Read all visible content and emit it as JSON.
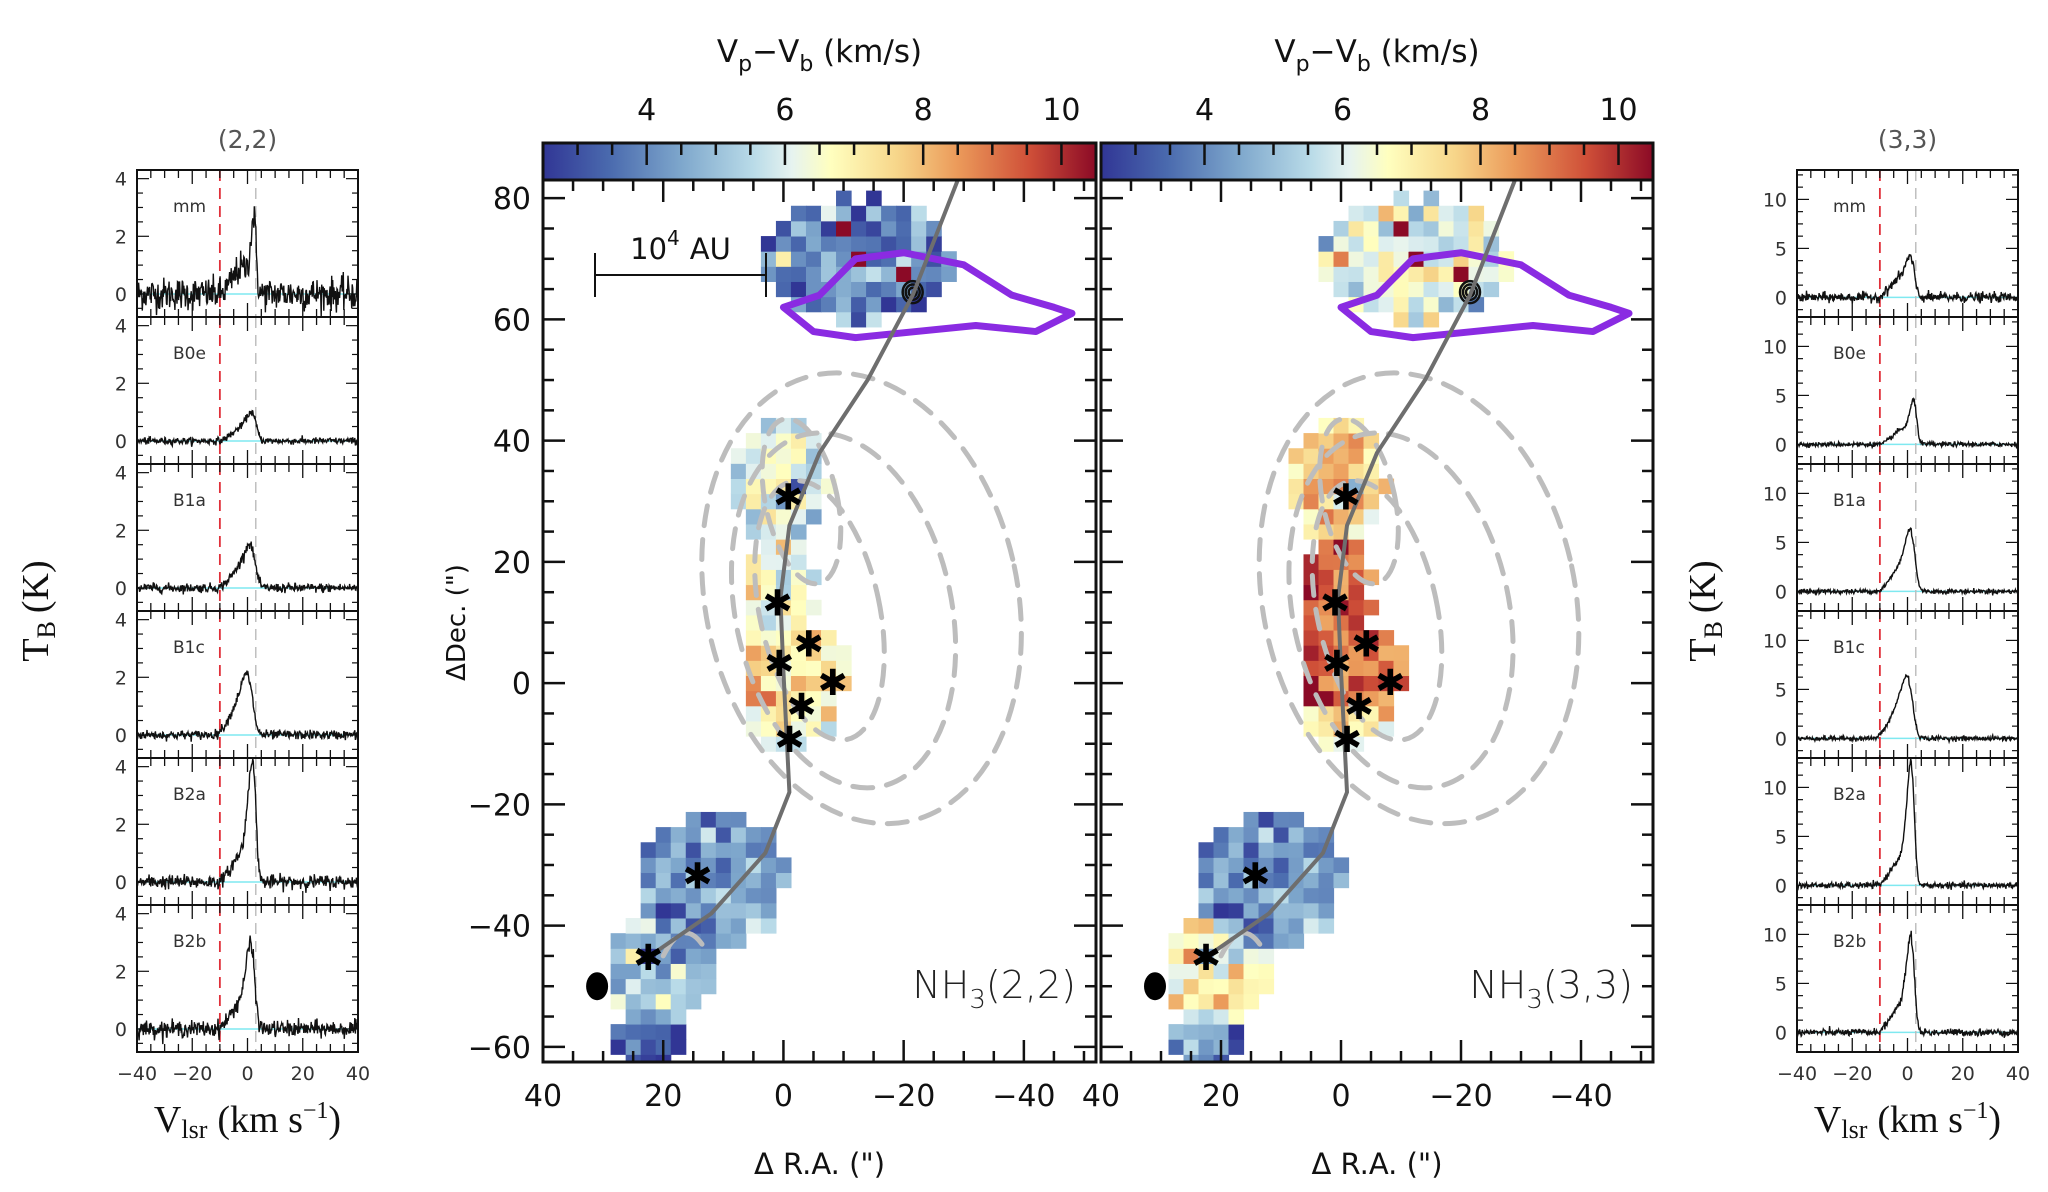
{
  "chart_data": [
    {
      "type": "line",
      "title": "(2,2)",
      "xlabel": "V_lsr (km s^-1)",
      "xlabel_parts": {
        "main": "V",
        "sub": "lsr",
        "unit": "(km s",
        "sup": "−1",
        "close": ")"
      },
      "ylabel": "T_B (K)",
      "ylabel_parts": {
        "main": "T",
        "sub": "B",
        "unit": "(K)"
      },
      "xlim": [
        -40,
        40
      ],
      "xticks": [
        -40,
        -20,
        0,
        20,
        40
      ],
      "xtick_labels": [
        "−40",
        "−20",
        "0",
        "20",
        "40"
      ],
      "ylim": [
        -0.8,
        4.3
      ],
      "yticks": [
        0,
        2,
        4
      ],
      "ytick_labels": [
        "0",
        "2",
        "4"
      ],
      "reference_lines": {
        "red_dashed_v": -10,
        "gray_dashed_v": 3
      },
      "series": [
        {
          "name": "mm",
          "peak_v": 2.5,
          "peak_t": 2.4,
          "wing_t": 0.9,
          "width": 1.2,
          "noise": 0.28
        },
        {
          "name": "B0e",
          "peak_v": 2.0,
          "peak_t": 0.85,
          "wing_t": 0.4,
          "width": 2.2,
          "noise": 0.06
        },
        {
          "name": "B1a",
          "peak_v": 1.5,
          "peak_t": 1.3,
          "wing_t": 0.6,
          "width": 2.4,
          "noise": 0.08
        },
        {
          "name": "B1c",
          "peak_v": 0.5,
          "peak_t": 1.8,
          "wing_t": 0.8,
          "width": 2.6,
          "noise": 0.08
        },
        {
          "name": "B2a",
          "peak_v": 2.0,
          "peak_t": 4.0,
          "wing_t": 0.9,
          "width": 1.8,
          "noise": 0.12
        },
        {
          "name": "B2b",
          "peak_v": 1.5,
          "peak_t": 2.7,
          "wing_t": 0.8,
          "width": 2.0,
          "noise": 0.14
        }
      ]
    },
    {
      "type": "heatmap",
      "title": "NH3(2,2)",
      "label": {
        "main": "NH",
        "sub": "3",
        "rest": "(2,2)"
      },
      "colorbar": {
        "label": "V_p−V_b (km/s)",
        "label_parts": {
          "v1": "V",
          "s1": "p",
          "dash": "−",
          "v2": "V",
          "s2": "b",
          "unit": " (km/s)"
        },
        "range": [
          2.5,
          10.5
        ],
        "ticks": [
          4,
          6,
          8,
          10
        ],
        "tick_labels": [
          "4",
          "6",
          "8",
          "10"
        ],
        "colormap": "RdYlBu_r"
      },
      "xlabel": "Δ R.A. (\")",
      "ylabel": "ΔDec. (\")",
      "xlim": [
        40,
        -52
      ],
      "ylim": [
        -62.5,
        83
      ],
      "xticks": [
        40,
        20,
        0,
        -20,
        -40
      ],
      "xtick_labels": [
        "40",
        "20",
        "0",
        "−20",
        "−40"
      ],
      "yticks": [
        80,
        60,
        40,
        20,
        0,
        -20,
        -40,
        -60
      ],
      "ytick_labels": [
        "80",
        "60",
        "40",
        "20",
        "0",
        "−20",
        "−40",
        "−60"
      ],
      "scale_bar": {
        "label_base": "10",
        "label_exp": "4",
        "label_unit": "AU",
        "length_arcsec": 28.5
      },
      "cores": [
        [
          -0.8,
          30.8
        ],
        [
          1.0,
          13.3
        ],
        [
          -4.2,
          6.5
        ],
        [
          0.7,
          3.3
        ],
        [
          -8.2,
          0.2
        ],
        [
          -3.0,
          -3.8
        ],
        [
          -1.0,
          -9.2
        ],
        [
          14.3,
          -31.7
        ],
        [
          22.5,
          -45.2
        ]
      ],
      "compact_source": [
        -21.5,
        64.5
      ],
      "beam": [
        31,
        -50
      ],
      "mean_velocity_level": "low"
    },
    {
      "type": "heatmap",
      "title": "NH3(3,3)",
      "label": {
        "main": "NH",
        "sub": "3",
        "rest": "(3,3)"
      },
      "colorbar": {
        "label": "V_p−V_b (km/s)",
        "label_parts": {
          "v1": "V",
          "s1": "p",
          "dash": "−",
          "v2": "V",
          "s2": "b",
          "unit": " (km/s)"
        },
        "range": [
          2.5,
          10.5
        ],
        "ticks": [
          4,
          6,
          8,
          10
        ],
        "tick_labels": [
          "4",
          "6",
          "8",
          "10"
        ],
        "colormap": "RdYlBu_r"
      },
      "xlabel": "Δ R.A. (\")",
      "xlim": [
        40,
        -52
      ],
      "ylim": [
        -62.5,
        83
      ],
      "xticks": [
        40,
        20,
        0,
        -20,
        -40
      ],
      "xtick_labels": [
        "40",
        "20",
        "0",
        "−20",
        "−40"
      ],
      "cores": [
        [
          -0.8,
          30.8
        ],
        [
          1.0,
          13.3
        ],
        [
          -4.2,
          6.5
        ],
        [
          0.7,
          3.3
        ],
        [
          -8.2,
          0.2
        ],
        [
          -3.0,
          -3.8
        ],
        [
          -1.0,
          -9.2
        ],
        [
          14.3,
          -31.7
        ],
        [
          22.5,
          -45.2
        ]
      ],
      "compact_source": [
        -21.5,
        64.5
      ],
      "beam": [
        31,
        -50
      ],
      "mean_velocity_level": "high"
    },
    {
      "type": "line",
      "title": "(3,3)",
      "xlabel": "V_lsr (km s^-1)",
      "xlabel_parts": {
        "main": "V",
        "sub": "lsr",
        "unit": "(km s",
        "sup": "−1",
        "close": ")"
      },
      "ylabel": "T_B (K)",
      "ylabel_parts": {
        "main": "T",
        "sub": "B",
        "unit": "(K)"
      },
      "xlim": [
        -40,
        40
      ],
      "xticks": [
        -40,
        -20,
        0,
        20,
        40
      ],
      "xtick_labels": [
        "−40",
        "−20",
        "0",
        "20",
        "40"
      ],
      "ylim": [
        -2,
        13
      ],
      "yticks": [
        0,
        5,
        10
      ],
      "ytick_labels": [
        "0",
        "5",
        "10"
      ],
      "reference_lines": {
        "red_dashed_v": -10,
        "gray_dashed_v": 3
      },
      "series": [
        {
          "name": "mm",
          "peak_v": 1.5,
          "peak_t": 3.5,
          "wing_t": 1.8,
          "width": 2.0,
          "noise": 0.25
        },
        {
          "name": "B0e",
          "peak_v": 2.5,
          "peak_t": 4.0,
          "wing_t": 1.5,
          "width": 1.6,
          "noise": 0.12
        },
        {
          "name": "B1a",
          "peak_v": 1.5,
          "peak_t": 5.6,
          "wing_t": 2.2,
          "width": 2.2,
          "noise": 0.12
        },
        {
          "name": "B1c",
          "peak_v": 0.5,
          "peak_t": 5.4,
          "wing_t": 2.4,
          "width": 2.6,
          "noise": 0.12
        },
        {
          "name": "B2a",
          "peak_v": 1.5,
          "peak_t": 11.8,
          "wing_t": 2.5,
          "width": 1.7,
          "noise": 0.15
        },
        {
          "name": "B2b",
          "peak_v": 1.5,
          "peak_t": 9.1,
          "wing_t": 2.5,
          "width": 1.8,
          "noise": 0.18
        }
      ]
    }
  ]
}
